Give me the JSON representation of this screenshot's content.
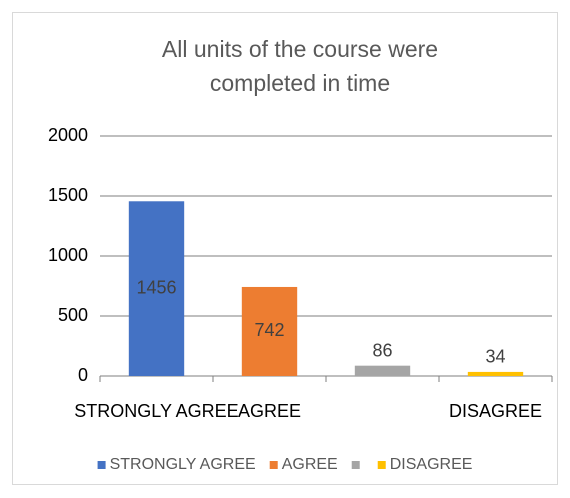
{
  "chart_data": {
    "type": "bar",
    "title": "All units of the course were completed in time",
    "categories": [
      "STRONGLY AGREE",
      "AGREE",
      null,
      "DISAGREE"
    ],
    "values": [
      1456,
      742,
      86,
      34
    ],
    "colors": [
      "#4472c4",
      "#ed7d31",
      "#a5a5a5",
      "#ffc000"
    ],
    "ylim": [
      0,
      2000
    ],
    "yticks": [
      0,
      500,
      1000,
      1500,
      2000
    ],
    "grid": true,
    "legend": "bottom"
  }
}
